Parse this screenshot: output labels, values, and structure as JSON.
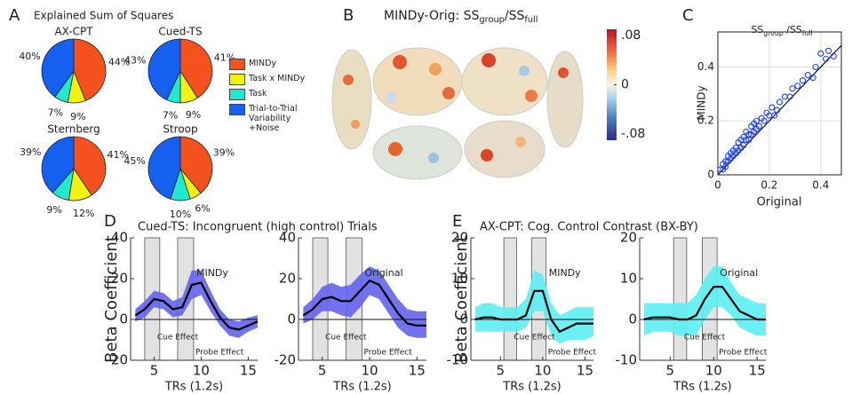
{
  "chart_data": [
    {
      "type": "pie",
      "panel": "A",
      "title": "Explained Sum of Squares",
      "series": [
        {
          "name": "MINDy",
          "color": "#f4511e"
        },
        {
          "name": "Task x MINDy",
          "color": "#f2f20f"
        },
        {
          "name": "Task",
          "color": "#22e8d0"
        },
        {
          "name": "Trial-to-Trial Variability +Noise",
          "color": "#1560f0"
        }
      ],
      "pies": [
        {
          "name": "AX-CPT",
          "values": [
            44,
            9,
            7,
            40
          ],
          "value_labels": [
            "44%",
            "9%",
            "7%",
            "40%"
          ]
        },
        {
          "name": "Cued-TS",
          "values": [
            41,
            9,
            7,
            43
          ],
          "value_labels": [
            "41%",
            "9%",
            "7%",
            "43%"
          ]
        },
        {
          "name": "Sternberg",
          "values": [
            41,
            12,
            9,
            39
          ],
          "value_labels": [
            "41%",
            "12%",
            "9%",
            "39%"
          ]
        },
        {
          "name": "Stroop",
          "values": [
            39,
            6,
            10,
            45
          ],
          "value_labels": [
            "39%",
            "6%",
            "10%",
            "45%"
          ]
        }
      ]
    },
    {
      "type": "brain-map",
      "panel": "B",
      "title_parts": [
        {
          "text": "MINDy-Orig: SS"
        },
        {
          "text": "group",
          "sub": true
        },
        {
          "text": "/SS"
        },
        {
          "text": "full",
          "sub": true
        }
      ],
      "clim": [
        -0.09,
        0.09
      ],
      "cticks": [
        {
          "value": 0.08,
          "label": ".08"
        },
        0,
        {
          "value": -0.08,
          "label": "-.08"
        }
      ]
    },
    {
      "type": "scatter",
      "panel": "C",
      "title_parts": [
        {
          "text": "SS"
        },
        {
          "text": "group",
          "sub": true
        },
        {
          "text": " /SS"
        },
        {
          "text": "full",
          "sub": true
        }
      ],
      "xlabel": "Original",
      "ylabel": "MINDy",
      "color": "#1f3ff0",
      "grid": true,
      "diagonal": true,
      "xlim": [
        0,
        0.48
      ],
      "ylim": [
        0,
        0.53
      ],
      "xticks": [
        0,
        0.2,
        0.4
      ],
      "yticks": [
        0,
        0.2,
        0.4
      ],
      "x": [
        0.01,
        0.02,
        0.02,
        0.03,
        0.03,
        0.04,
        0.04,
        0.05,
        0.05,
        0.06,
        0.06,
        0.07,
        0.07,
        0.08,
        0.08,
        0.09,
        0.09,
        0.1,
        0.1,
        0.11,
        0.11,
        0.12,
        0.12,
        0.13,
        0.13,
        0.14,
        0.14,
        0.15,
        0.15,
        0.16,
        0.17,
        0.18,
        0.19,
        0.2,
        0.21,
        0.22,
        0.23,
        0.24,
        0.26,
        0.28,
        0.29,
        0.31,
        0.33,
        0.35,
        0.37,
        0.38,
        0.4,
        0.42,
        0.43,
        0.45
      ],
      "y": [
        0.02,
        0.02,
        0.04,
        0.03,
        0.05,
        0.05,
        0.07,
        0.06,
        0.08,
        0.07,
        0.09,
        0.08,
        0.1,
        0.09,
        0.12,
        0.1,
        0.13,
        0.11,
        0.14,
        0.13,
        0.16,
        0.13,
        0.15,
        0.15,
        0.18,
        0.16,
        0.19,
        0.17,
        0.2,
        0.18,
        0.21,
        0.2,
        0.23,
        0.22,
        0.25,
        0.22,
        0.24,
        0.27,
        0.29,
        0.29,
        0.32,
        0.33,
        0.35,
        0.37,
        0.36,
        0.4,
        0.45,
        0.43,
        0.46,
        0.44
      ]
    },
    {
      "type": "line-band",
      "panel": "D",
      "title": "Cued-TS: Incongruent (high control) Trials",
      "ylabel": "Beta Coefficient",
      "band_color": "#6464ee",
      "subplots": [
        {
          "name": "MINDy",
          "xlabel": "TRs (1.2s)",
          "xlim": [
            2.5,
            16
          ],
          "ylim": [
            -20,
            40
          ],
          "xticks": [
            5,
            10,
            15
          ],
          "yticks": [
            -20,
            0,
            20,
            40
          ],
          "shaded": [
            {
              "range": [
                4,
                5.6
              ],
              "label": "Cue Effect"
            },
            {
              "range": [
                7.5,
                9.2
              ],
              "label": "Probe Effect"
            }
          ],
          "x": [
            3,
            4,
            5,
            6,
            7,
            8,
            9,
            10,
            11,
            12,
            13,
            14,
            15,
            16
          ],
          "values": [
            2,
            5,
            10,
            9,
            5,
            6,
            17,
            18,
            9,
            1,
            -4,
            -5,
            -3,
            -1
          ],
          "upper": [
            5,
            9,
            14,
            13,
            9,
            11,
            24,
            24,
            14,
            5,
            0,
            -1,
            1,
            2
          ],
          "lower": [
            -1,
            1,
            6,
            5,
            1,
            2,
            10,
            12,
            4,
            -3,
            -8,
            -9,
            -6,
            -4
          ]
        },
        {
          "name": "Original",
          "xlabel": "TRs (1.2s)",
          "xlim": [
            2.5,
            16
          ],
          "ylim": [
            -20,
            40
          ],
          "xticks": [
            5,
            10,
            15
          ],
          "yticks": [
            -20,
            0,
            20,
            40
          ],
          "shaded": [
            {
              "range": [
                4,
                5.6
              ],
              "label": "Cue Effect"
            },
            {
              "range": [
                7.5,
                9.2
              ],
              "label": "Probe Effect"
            }
          ],
          "x": [
            3,
            4,
            5,
            6,
            7,
            8,
            9,
            10,
            11,
            12,
            13,
            14,
            15,
            16
          ],
          "values": [
            2,
            5,
            10,
            11,
            9,
            9,
            14,
            19,
            17,
            10,
            3,
            -2,
            -3,
            -3
          ],
          "upper": [
            6,
            10,
            16,
            18,
            16,
            17,
            22,
            26,
            24,
            17,
            10,
            5,
            4,
            4
          ],
          "lower": [
            -2,
            0,
            4,
            4,
            2,
            1,
            6,
            12,
            10,
            3,
            -4,
            -8,
            -9,
            -9
          ]
        }
      ]
    },
    {
      "type": "line-band",
      "panel": "E",
      "title": "AX-CPT: Cog. Control Contrast (BX-BY)",
      "ylabel": "Beta Coefficient",
      "band_color": "#5ceef2",
      "subplots": [
        {
          "name": "MINDy",
          "xlabel": "TRs (1.2s)",
          "xlim": [
            1.5,
            16
          ],
          "ylim": [
            -10,
            20
          ],
          "xticks": [
            5,
            10,
            15
          ],
          "yticks": [
            -10,
            0,
            10,
            20
          ],
          "shaded": [
            {
              "range": [
                5.4,
                6.9
              ],
              "label": "Cue Effect"
            },
            {
              "range": [
                8.7,
                10.4
              ],
              "label": "Probe Effect"
            }
          ],
          "x": [
            2,
            3,
            4,
            5,
            6,
            7,
            8,
            9,
            10,
            11,
            12,
            13,
            14,
            15,
            16
          ],
          "values": [
            0,
            0.5,
            0.5,
            0,
            0,
            0,
            1,
            7,
            7,
            0,
            -3,
            -2,
            -1,
            -1,
            -1
          ],
          "upper": [
            3,
            4,
            4,
            3,
            3,
            3,
            5,
            12,
            11,
            4,
            1,
            2,
            3,
            3,
            3
          ],
          "lower": [
            -3,
            -3,
            -3,
            -3,
            -3,
            -3,
            -2,
            2,
            2,
            -4,
            -6,
            -5,
            -5,
            -5,
            -4
          ]
        },
        {
          "name": "Original",
          "xlabel": "TRs (1.2s)",
          "xlim": [
            1.5,
            16
          ],
          "ylim": [
            -10,
            20
          ],
          "xticks": [
            5,
            10,
            15
          ],
          "yticks": [
            -10,
            0,
            10,
            20
          ],
          "shaded": [
            {
              "range": [
                5.4,
                6.9
              ],
              "label": "Cue Effect"
            },
            {
              "range": [
                8.7,
                10.4
              ],
              "label": "Probe Effect"
            }
          ],
          "x": [
            2,
            3,
            4,
            5,
            6,
            7,
            8,
            9,
            10,
            11,
            12,
            13,
            14,
            15,
            16
          ],
          "values": [
            0,
            0.5,
            0.5,
            0.5,
            0,
            0,
            1,
            5,
            8,
            8,
            5,
            2,
            1,
            0,
            0
          ],
          "upper": [
            4,
            4,
            4,
            4,
            4,
            4,
            6,
            10,
            13,
            13,
            9,
            6,
            5,
            4,
            4
          ],
          "lower": [
            -4,
            -3,
            -3,
            -3,
            -4,
            -4,
            -4,
            0,
            3,
            3,
            1,
            -2,
            -3,
            -4,
            -4
          ]
        }
      ]
    }
  ]
}
